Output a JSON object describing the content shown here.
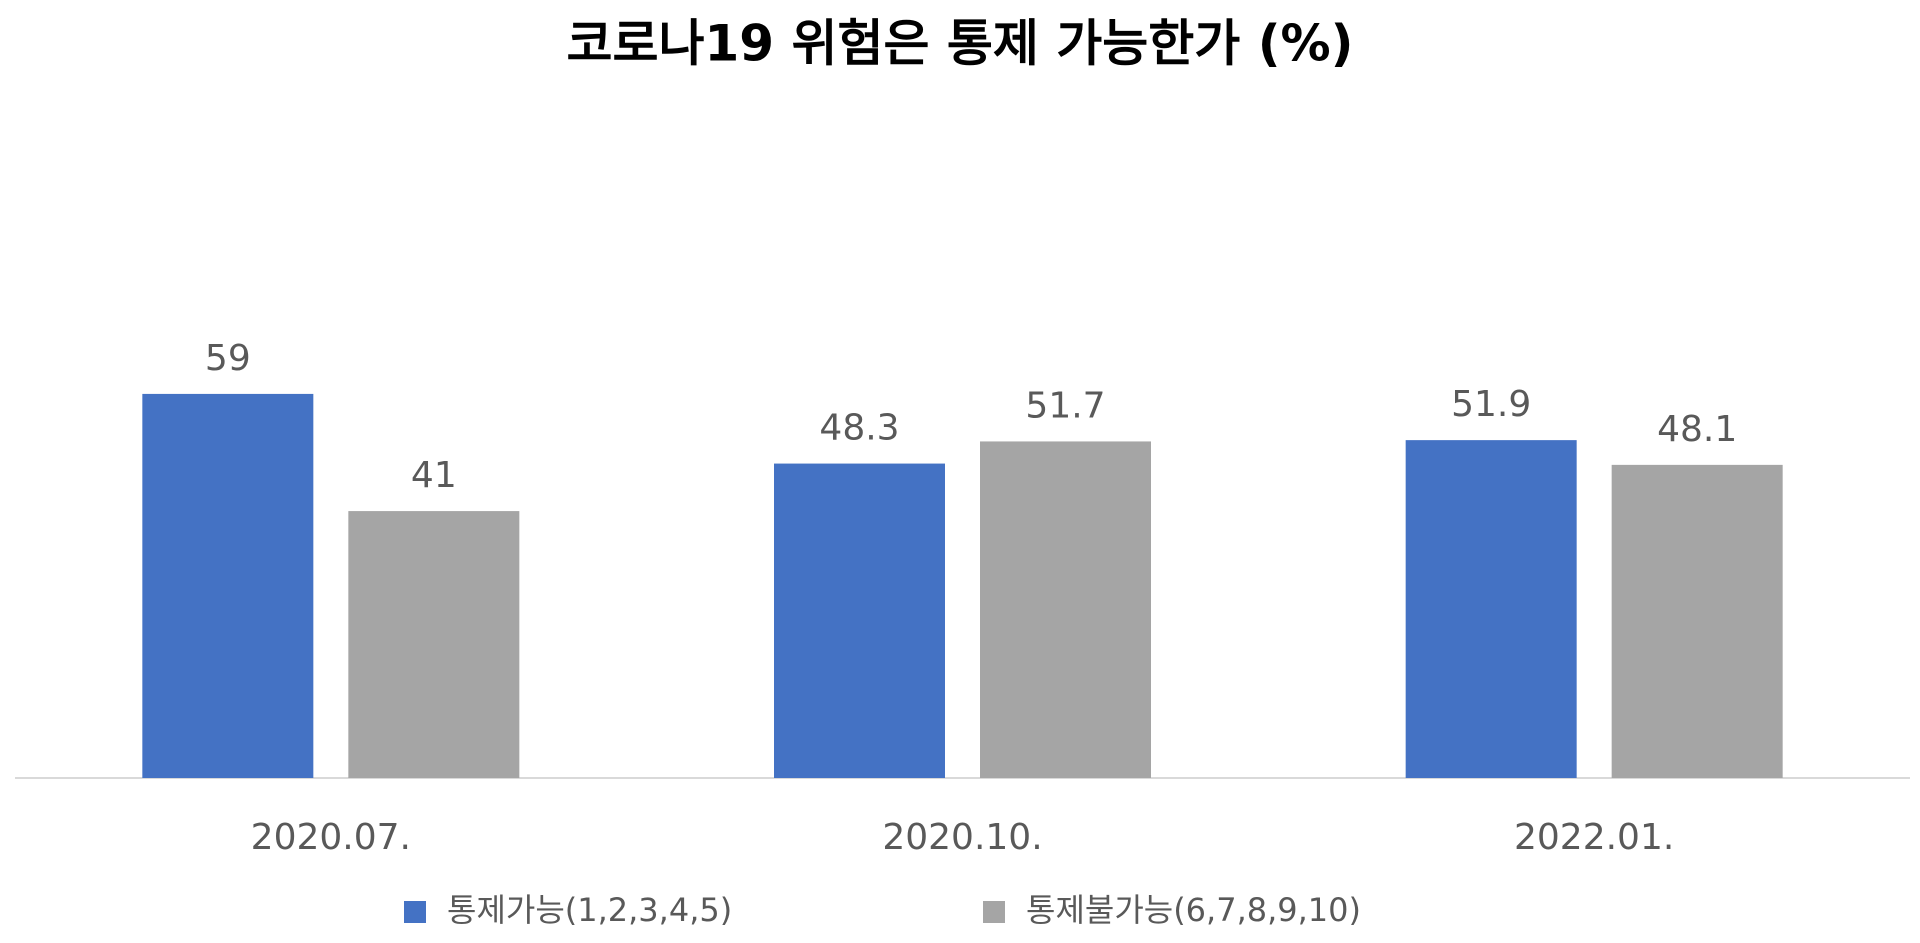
{
  "chart_data": {
    "type": "bar",
    "title": "코로나19 위험은 통제 가능한가 (%)",
    "categories": [
      "2020.07.",
      "2020.10.",
      "2022.01."
    ],
    "series": [
      {
        "name": "통제가능(1,2,3,4,5)",
        "color": "#4472c4",
        "values": [
          59,
          48.3,
          51.9
        ]
      },
      {
        "name": "통제불가능(6,7,8,9,10)",
        "color": "#a5a5a5",
        "values": [
          41,
          51.7,
          48.1
        ]
      }
    ],
    "legend": "bottom"
  }
}
